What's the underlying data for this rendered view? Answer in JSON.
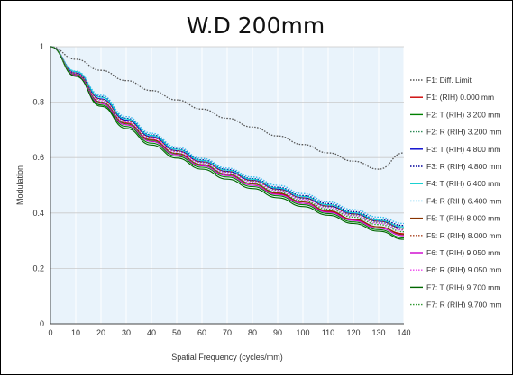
{
  "chart_data": {
    "type": "line",
    "title": "W.D 200mm",
    "xlabel": "Spatial Frequency (cycles/mm)",
    "ylabel": "Modulation",
    "xlim": [
      0,
      140
    ],
    "ylim": [
      0,
      1
    ],
    "xticks": [
      0,
      10,
      20,
      30,
      40,
      50,
      60,
      70,
      80,
      90,
      100,
      110,
      120,
      130,
      140
    ],
    "yticks": [
      0,
      0.2,
      0.4,
      0.6,
      0.8,
      1
    ],
    "ytick_labels": [
      "0",
      "0.2",
      "0.4",
      "0.6",
      "0.8",
      "1"
    ],
    "grid": true,
    "background_bands": [
      "#e9f3fb",
      "#ffffff"
    ],
    "legend_position": "right",
    "x": [
      0,
      10,
      20,
      30,
      40,
      50,
      60,
      70,
      80,
      90,
      100,
      110,
      120,
      130,
      140
    ],
    "series": [
      {
        "name": "F1: Diff. Limit",
        "color": "#555555",
        "style": "dotted",
        "values": [
          1.0,
          0.955,
          0.915,
          0.878,
          0.842,
          0.808,
          0.775,
          0.742,
          0.71,
          0.678,
          0.647,
          0.617,
          0.587,
          0.558,
          0.617
        ]
      },
      {
        "name": "F1: (RIH) 0.000 mm",
        "color": "#cc0000",
        "style": "solid",
        "values": [
          1.0,
          0.9,
          0.8,
          0.725,
          0.665,
          0.615,
          0.575,
          0.54,
          0.505,
          0.47,
          0.435,
          0.405,
          0.375,
          0.35,
          0.325
        ]
      },
      {
        "name": "F2: T (RIH) 3.200 mm",
        "color": "#008000",
        "style": "solid",
        "values": [
          1.0,
          0.895,
          0.79,
          0.712,
          0.652,
          0.605,
          0.565,
          0.53,
          0.495,
          0.462,
          0.43,
          0.398,
          0.368,
          0.34,
          0.31
        ]
      },
      {
        "name": "F2: R (RIH) 3.200 mm",
        "color": "#2e8b57",
        "style": "dotted",
        "values": [
          1.0,
          0.905,
          0.81,
          0.73,
          0.672,
          0.622,
          0.582,
          0.548,
          0.515,
          0.482,
          0.452,
          0.422,
          0.392,
          0.365,
          0.34
        ]
      },
      {
        "name": "F3: T (RIH) 4.800 mm",
        "color": "#0000cc",
        "style": "solid",
        "values": [
          1.0,
          0.905,
          0.812,
          0.735,
          0.675,
          0.625,
          0.585,
          0.55,
          0.518,
          0.486,
          0.455,
          0.425,
          0.397,
          0.37,
          0.345
        ]
      },
      {
        "name": "F3: R (RIH) 4.800 mm",
        "color": "#000099",
        "style": "dotted",
        "values": [
          1.0,
          0.91,
          0.82,
          0.742,
          0.682,
          0.632,
          0.592,
          0.557,
          0.524,
          0.493,
          0.463,
          0.434,
          0.405,
          0.378,
          0.355
        ]
      },
      {
        "name": "F4: T (RIH) 6.400 mm",
        "color": "#00cccc",
        "style": "solid",
        "values": [
          1.0,
          0.91,
          0.818,
          0.74,
          0.68,
          0.63,
          0.59,
          0.555,
          0.522,
          0.49,
          0.46,
          0.43,
          0.401,
          0.374,
          0.35
        ]
      },
      {
        "name": "F4: R (RIH) 6.400 mm",
        "color": "#33bbee",
        "style": "dotted",
        "values": [
          1.0,
          0.912,
          0.825,
          0.748,
          0.688,
          0.638,
          0.597,
          0.562,
          0.53,
          0.5,
          0.47,
          0.44,
          0.412,
          0.385,
          0.362
        ]
      },
      {
        "name": "F5: T (RIH) 8.000 mm",
        "color": "#883300",
        "style": "solid",
        "values": [
          1.0,
          0.9,
          0.8,
          0.722,
          0.662,
          0.614,
          0.574,
          0.539,
          0.505,
          0.472,
          0.44,
          0.408,
          0.378,
          0.35,
          0.322
        ]
      },
      {
        "name": "F5: R (RIH) 8.000 mm",
        "color": "#aa4422",
        "style": "dotted",
        "values": [
          1.0,
          0.905,
          0.81,
          0.732,
          0.673,
          0.624,
          0.584,
          0.55,
          0.517,
          0.485,
          0.455,
          0.425,
          0.396,
          0.37,
          0.345
        ]
      },
      {
        "name": "F6: T (RIH) 9.050 mm",
        "color": "#cc00cc",
        "style": "solid",
        "values": [
          1.0,
          0.898,
          0.795,
          0.718,
          0.658,
          0.61,
          0.57,
          0.535,
          0.5,
          0.467,
          0.435,
          0.403,
          0.373,
          0.345,
          0.318
        ]
      },
      {
        "name": "F6: R (RIH) 9.050 mm",
        "color": "#ee44ee",
        "style": "dotted",
        "values": [
          1.0,
          0.903,
          0.805,
          0.728,
          0.668,
          0.62,
          0.58,
          0.545,
          0.512,
          0.48,
          0.449,
          0.419,
          0.39,
          0.363,
          0.338
        ]
      },
      {
        "name": "F7: T (RIH) 9.700 mm",
        "color": "#006600",
        "style": "solid",
        "values": [
          1.0,
          0.893,
          0.785,
          0.705,
          0.645,
          0.598,
          0.558,
          0.522,
          0.488,
          0.455,
          0.423,
          0.392,
          0.362,
          0.334,
          0.305
        ]
      },
      {
        "name": "F7: R (RIH) 9.700 mm",
        "color": "#339933",
        "style": "dotted",
        "values": [
          1.0,
          0.9,
          0.8,
          0.722,
          0.662,
          0.614,
          0.574,
          0.54,
          0.507,
          0.475,
          0.444,
          0.414,
          0.385,
          0.358,
          0.332
        ]
      }
    ]
  }
}
